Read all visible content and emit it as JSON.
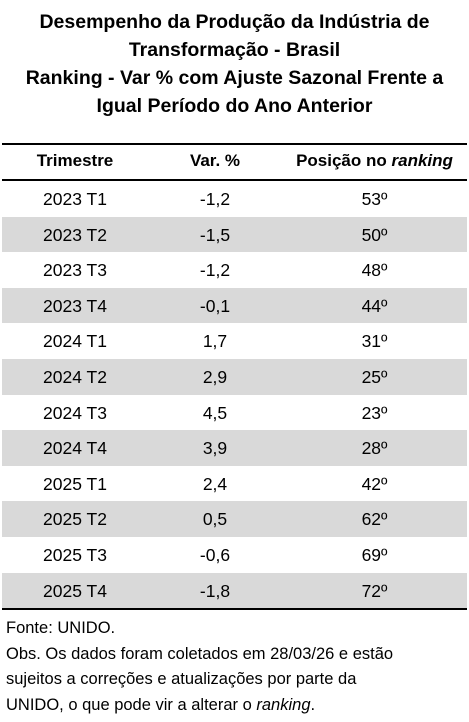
{
  "title": {
    "line1": "Desempenho da Produção da Indústria de",
    "line2": "Transformação - Brasil",
    "line3": "Ranking - Var % com Ajuste Sazonal Frente a",
    "line4": "Igual Período do Ano Anterior"
  },
  "table": {
    "headers": {
      "col1": "Trimestre",
      "col2": "Var. %",
      "col3_prefix": "Posição no ",
      "col3_italic": "ranking"
    },
    "rows": [
      {
        "period": "2023 T1",
        "var": "-1,2",
        "rank": "53º"
      },
      {
        "period": "2023 T2",
        "var": "-1,5",
        "rank": "50º"
      },
      {
        "period": "2023 T3",
        "var": "-1,2",
        "rank": "48º"
      },
      {
        "period": "2023 T4",
        "var": "-0,1",
        "rank": "44º"
      },
      {
        "period": "2024 T1",
        "var": "1,7",
        "rank": "31º"
      },
      {
        "period": "2024 T2",
        "var": "2,9",
        "rank": "25º"
      },
      {
        "period": "2024 T3",
        "var": "4,5",
        "rank": "23º"
      },
      {
        "period": "2024 T4",
        "var": "3,9",
        "rank": "28º"
      },
      {
        "period": "2025 T1",
        "var": "2,4",
        "rank": "42º"
      },
      {
        "period": "2025 T2",
        "var": "0,5",
        "rank": "62º"
      },
      {
        "period": "2025 T3",
        "var": "-0,6",
        "rank": "69º"
      },
      {
        "period": "2025 T4",
        "var": "-1,8",
        "rank": "72º"
      }
    ],
    "shade_color": "#d9d9d9"
  },
  "notes": {
    "source": "Fonte: UNIDO.",
    "obs_line1": "Obs. Os dados foram coletados em 28/03/26 e estão",
    "obs_line2": "sujeitos a correções e atualizações por parte da",
    "obs_line3_prefix": "UNIDO, o que pode vir a alterar o ",
    "obs_line3_italic": "ranking",
    "obs_line3_suffix": "."
  }
}
